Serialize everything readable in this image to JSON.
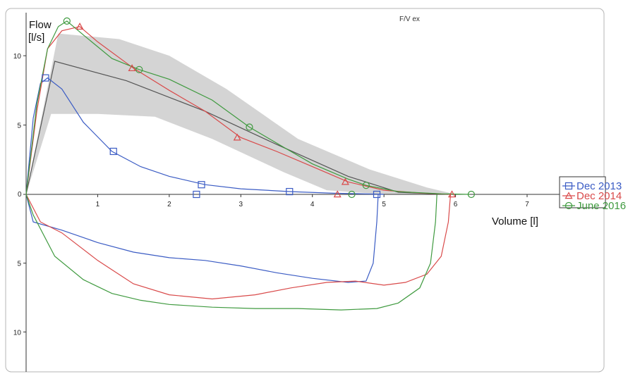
{
  "chart_data": {
    "type": "line",
    "title": "F/V ex",
    "ylabel_line1": "Flow",
    "ylabel_line2": "[l/s]",
    "xlabel": "Volume [l]",
    "x_ticks": [
      "1",
      "2",
      "3",
      "4",
      "5",
      "6",
      "7"
    ],
    "y_ticks_up": [
      "5",
      "10"
    ],
    "y_zero": "0",
    "y_ticks_down": [
      "5",
      "10"
    ],
    "xlim": [
      0,
      8.1
    ],
    "ylim_expiratory": [
      0,
      12.8
    ],
    "ylim_inspiratory": [
      0,
      12.9
    ],
    "grid": false,
    "legend_position": "right",
    "predicted": {
      "color": "#555555",
      "band_color": "#d4d4d4",
      "mean": [
        [
          0,
          0
        ],
        [
          0.4,
          9.6
        ],
        [
          1.4,
          8.2
        ],
        [
          2.5,
          6.0
        ],
        [
          3.5,
          3.6
        ],
        [
          4.5,
          1.3
        ],
        [
          5.2,
          0.15
        ],
        [
          5.9,
          0
        ]
      ],
      "upper": [
        [
          0,
          0
        ],
        [
          0.45,
          11.6
        ],
        [
          1.3,
          11.2
        ],
        [
          2.0,
          10.0
        ],
        [
          2.8,
          7.6
        ],
        [
          3.8,
          4.0
        ],
        [
          4.8,
          1.8
        ],
        [
          5.6,
          0.5
        ],
        [
          6.0,
          0
        ]
      ],
      "lower": [
        [
          0,
          0
        ],
        [
          0.35,
          5.8
        ],
        [
          1.0,
          5.8
        ],
        [
          1.8,
          5.6
        ],
        [
          2.6,
          4.0
        ],
        [
          3.6,
          1.6
        ],
        [
          4.2,
          0.3
        ],
        [
          5.0,
          0
        ],
        [
          6.0,
          0
        ]
      ]
    },
    "series": [
      {
        "name": "Dec 2013",
        "color": "#3b5cc4",
        "marker": "square",
        "expiratory": [
          [
            0,
            0
          ],
          [
            0.1,
            5.5
          ],
          [
            0.2,
            8.0
          ],
          [
            0.3,
            8.4
          ],
          [
            0.5,
            7.6
          ],
          [
            0.8,
            5.2
          ],
          [
            1.2,
            3.1
          ],
          [
            1.6,
            2.0
          ],
          [
            2.0,
            1.3
          ],
          [
            2.5,
            0.7
          ],
          [
            3.0,
            0.4
          ],
          [
            3.7,
            0.2
          ],
          [
            4.3,
            0.08
          ],
          [
            4.9,
            0.02
          ],
          [
            5.0,
            0
          ]
        ],
        "inspiratory": [
          [
            0,
            0
          ],
          [
            0.1,
            2.0
          ],
          [
            0.5,
            2.6
          ],
          [
            1.0,
            3.5
          ],
          [
            1.5,
            4.2
          ],
          [
            2.0,
            4.6
          ],
          [
            2.5,
            4.8
          ],
          [
            3.0,
            5.2
          ],
          [
            3.5,
            5.7
          ],
          [
            4.0,
            6.1
          ],
          [
            4.5,
            6.4
          ],
          [
            4.75,
            6.3
          ],
          [
            4.85,
            5.0
          ],
          [
            4.9,
            2.0
          ],
          [
            4.92,
            0
          ]
        ],
        "markers": [
          [
            0.27,
            8.4
          ],
          [
            1.22,
            3.1
          ],
          [
            2.45,
            0.7
          ],
          [
            3.68,
            0.2
          ],
          [
            2.38,
            0
          ],
          [
            4.9,
            0
          ]
        ]
      },
      {
        "name": "Dec 2014",
        "color": "#d94a4a",
        "marker": "triangle",
        "expiratory": [
          [
            0,
            0
          ],
          [
            0.15,
            6.0
          ],
          [
            0.3,
            10.5
          ],
          [
            0.5,
            11.8
          ],
          [
            0.75,
            12.1
          ],
          [
            1.0,
            11.0
          ],
          [
            1.5,
            9.1
          ],
          [
            2.0,
            7.5
          ],
          [
            2.5,
            6.0
          ],
          [
            3.0,
            4.1
          ],
          [
            3.5,
            3.1
          ],
          [
            4.0,
            2.0
          ],
          [
            4.5,
            0.9
          ],
          [
            5.0,
            0.3
          ],
          [
            5.5,
            0.1
          ],
          [
            5.95,
            0
          ]
        ],
        "inspiratory": [
          [
            0,
            0
          ],
          [
            0.2,
            2.0
          ],
          [
            0.5,
            2.8
          ],
          [
            1.0,
            4.8
          ],
          [
            1.5,
            6.5
          ],
          [
            2.0,
            7.3
          ],
          [
            2.6,
            7.6
          ],
          [
            3.2,
            7.3
          ],
          [
            3.7,
            6.8
          ],
          [
            4.2,
            6.4
          ],
          [
            4.6,
            6.3
          ],
          [
            5.0,
            6.6
          ],
          [
            5.3,
            6.4
          ],
          [
            5.6,
            5.8
          ],
          [
            5.8,
            4.5
          ],
          [
            5.9,
            2.0
          ],
          [
            5.93,
            0
          ]
        ],
        "markers": [
          [
            0.75,
            12.1
          ],
          [
            1.48,
            9.1
          ],
          [
            2.95,
            4.1
          ],
          [
            4.46,
            0.9
          ],
          [
            4.35,
            0
          ],
          [
            5.95,
            0
          ]
        ]
      },
      {
        "name": "June 2016",
        "color": "#3f9a3f",
        "marker": "circle",
        "expiratory": [
          [
            0,
            0
          ],
          [
            0.15,
            6.5
          ],
          [
            0.3,
            10.5
          ],
          [
            0.45,
            12.1
          ],
          [
            0.57,
            12.5
          ],
          [
            0.8,
            11.5
          ],
          [
            1.2,
            9.8
          ],
          [
            1.58,
            9.0
          ],
          [
            2.0,
            8.3
          ],
          [
            2.6,
            6.8
          ],
          [
            3.12,
            4.85
          ],
          [
            3.6,
            3.4
          ],
          [
            4.0,
            2.2
          ],
          [
            4.5,
            1.1
          ],
          [
            4.75,
            0.65
          ],
          [
            5.2,
            0.2
          ],
          [
            5.8,
            0.04
          ],
          [
            6.2,
            0
          ]
        ],
        "inspiratory": [
          [
            0,
            0
          ],
          [
            0.1,
            1.5
          ],
          [
            0.4,
            4.5
          ],
          [
            0.8,
            6.2
          ],
          [
            1.2,
            7.2
          ],
          [
            1.6,
            7.7
          ],
          [
            2.0,
            8.0
          ],
          [
            2.6,
            8.2
          ],
          [
            3.2,
            8.3
          ],
          [
            3.8,
            8.3
          ],
          [
            4.4,
            8.4
          ],
          [
            4.9,
            8.3
          ],
          [
            5.2,
            7.9
          ],
          [
            5.5,
            6.8
          ],
          [
            5.65,
            5.0
          ],
          [
            5.72,
            2.0
          ],
          [
            5.74,
            0
          ]
        ],
        "markers": [
          [
            0.57,
            12.5
          ],
          [
            1.58,
            9.0
          ],
          [
            3.12,
            4.85
          ],
          [
            4.75,
            0.65
          ],
          [
            4.55,
            0
          ],
          [
            6.22,
            0
          ]
        ]
      }
    ]
  }
}
